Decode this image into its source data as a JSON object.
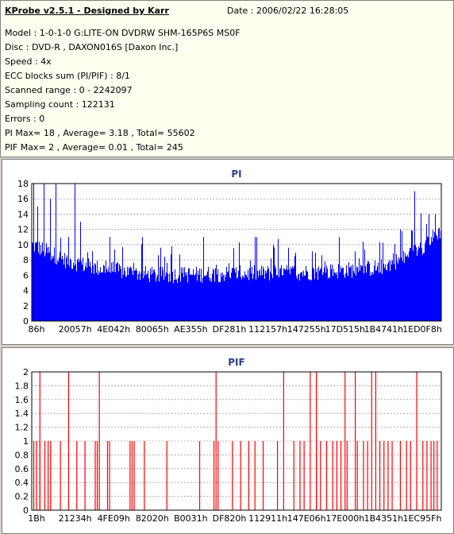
{
  "header": {
    "app_title": "KProbe v2.5.1 - Designed by Karr",
    "date": "Date : 2006/02/22 16:28:05",
    "lines": [
      "Model : 1-0-1-0 G:LITE-ON DVDRW SHM-165P6S MS0F",
      "Disc : DVD-R , DAXON016S [Daxon Inc.]",
      "Speed : 4x",
      "ECC blocks sum (PI/PIF) : 8/1",
      "Scanned range : 0 - 2242097",
      "Sampling count : 122131",
      "Errors : 0",
      "PI Max= 18 , Average= 3.18 , Total= 55602",
      "PIF Max= 2 , Average= 0.01 , Total= 245"
    ]
  },
  "colors": {
    "pi": "#0000ff",
    "pif": "#ff0000",
    "grid": "#808080",
    "title": "#2a3f8a"
  },
  "chart_data": [
    {
      "type": "bar",
      "title": "PI",
      "ylim": [
        0,
        18
      ],
      "yticks": [
        0,
        2,
        4,
        6,
        8,
        10,
        12,
        14,
        16,
        18
      ],
      "xtick_labels": [
        "86h",
        "20057h",
        "4E042h",
        "80065h",
        "AE355h",
        "DF281h",
        "112157h",
        "147255h",
        "17D515h",
        "1B4741h",
        "1ED0F8h"
      ],
      "grid": true,
      "baseline_profile": [
        [
          0,
          10
        ],
        [
          0.04,
          9
        ],
        [
          0.08,
          8
        ],
        [
          0.15,
          7
        ],
        [
          0.3,
          6
        ],
        [
          0.5,
          6.2
        ],
        [
          0.7,
          6.4
        ],
        [
          0.85,
          7
        ],
        [
          0.92,
          8.5
        ],
        [
          0.96,
          10
        ],
        [
          1.0,
          12
        ]
      ],
      "spikes": [
        [
          0.005,
          18
        ],
        [
          0.015,
          15
        ],
        [
          0.03,
          18
        ],
        [
          0.045,
          16
        ],
        [
          0.06,
          18
        ],
        [
          0.09,
          11
        ],
        [
          0.105,
          18
        ],
        [
          0.12,
          13
        ],
        [
          0.19,
          11
        ],
        [
          0.27,
          11
        ],
        [
          0.42,
          11
        ],
        [
          0.55,
          11
        ],
        [
          0.75,
          11
        ],
        [
          0.9,
          12
        ],
        [
          0.935,
          17
        ],
        [
          0.97,
          14
        ],
        [
          0.985,
          14
        ]
      ],
      "max": 18,
      "average": 3.18
    },
    {
      "type": "bar",
      "title": "PIF",
      "ylim": [
        0,
        2
      ],
      "yticks": [
        0,
        0.2,
        0.4,
        0.6,
        0.8,
        1,
        1.2,
        1.4,
        1.6,
        1.8,
        2
      ],
      "ytick_labels": [
        "0",
        "0.2",
        "0.4",
        "0.6",
        "0.8",
        "1",
        "1.2",
        "1.4",
        "1.6",
        "1.8",
        "2"
      ],
      "xtick_labels": [
        "1Bh",
        "21234h",
        "4FE09h",
        "82020h",
        "B0031h",
        "DF820h",
        "112911h",
        "147E06h",
        "17E000h",
        "1B4351h",
        "1EC95Fh"
      ],
      "grid": true,
      "ones": [
        0.005,
        0.012,
        0.02,
        0.032,
        0.04,
        0.046,
        0.07,
        0.11,
        0.13,
        0.155,
        0.16,
        0.185,
        0.19,
        0.24,
        0.245,
        0.25,
        0.275,
        0.33,
        0.41,
        0.445,
        0.455,
        0.49,
        0.51,
        0.53,
        0.545,
        0.565,
        0.6,
        0.64,
        0.655,
        0.665,
        0.695,
        0.705,
        0.72,
        0.735,
        0.745,
        0.755,
        0.77,
        0.795,
        0.81,
        0.82,
        0.85,
        0.86,
        0.87,
        0.88,
        0.9,
        0.915,
        0.925,
        0.955,
        0.965,
        0.975,
        0.982,
        0.99
      ],
      "twos": [
        0.02,
        0.09,
        0.165,
        0.45,
        0.615,
        0.68,
        0.695,
        0.765,
        0.79,
        0.83,
        0.84,
        0.94
      ],
      "max": 2,
      "average": 0.01
    }
  ]
}
